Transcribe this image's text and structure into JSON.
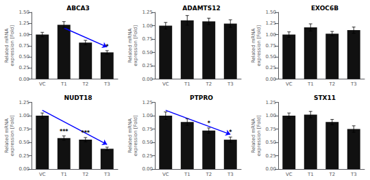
{
  "chart_data": [
    {
      "type": "bar",
      "title": "ABCA3",
      "categories": [
        "VC",
        "T1",
        "T2",
        "T3"
      ],
      "values": [
        1.0,
        1.22,
        0.82,
        0.6
      ],
      "errors": [
        0.05,
        0.07,
        0.05,
        0.04
      ],
      "color": "#111111",
      "ylabel": "Related mRNA\nexpression [Fold]",
      "ylim": [
        0.0,
        1.5
      ],
      "yticks": [
        {
          "value": 0.0,
          "label": "0.00"
        },
        0.25,
        {
          "value": 0.5,
          "label": "0.50"
        },
        0.75,
        {
          "value": 1.0,
          "label": "1.00"
        },
        1.25,
        {
          "value": 1.5,
          "label": "1.50"
        }
      ],
      "grid": false,
      "annotations": [
        {
          "type": "arrow",
          "from": [
            "T1",
            1.15
          ],
          "to": [
            "T3",
            0.72
          ],
          "color": "#0000FF"
        },
        {
          "type": "text",
          "text": "*",
          "x": "T3",
          "y": 0.6625
        }
      ]
    },
    {
      "type": "bar",
      "title": "ADAMTS12",
      "categories": [
        "VC",
        "T1",
        "T2",
        "T3"
      ],
      "values": [
        1.0,
        1.1,
        1.08,
        1.04
      ],
      "errors": [
        0.06,
        0.09,
        0.06,
        0.07
      ],
      "color": "#111111",
      "ylabel": "Related mRNA\nexpression [Fold]",
      "ylim": [
        0.0,
        1.25
      ],
      "yticks": [
        {
          "value": 0.0,
          "label": "0.00"
        },
        0.25,
        {
          "value": 0.5,
          "label": "0.50"
        },
        0.75,
        {
          "value": 1.0,
          "label": "1.00"
        },
        1.25
      ],
      "grid": false
    },
    {
      "type": "bar",
      "title": "EXOC6B",
      "categories": [
        "VC",
        "T1",
        "T2",
        "T3"
      ],
      "values": [
        1.0,
        1.16,
        1.02,
        1.1
      ],
      "errors": [
        0.06,
        0.08,
        0.05,
        0.07
      ],
      "color": "#111111",
      "ylabel": "Related mRNA\nexpression [Fold]",
      "ylim": [
        0.0,
        1.5
      ],
      "yticks": [
        {
          "value": 0.0,
          "label": "0.00"
        },
        0.25,
        {
          "value": 0.5,
          "label": "0.50"
        },
        0.75,
        {
          "value": 1.0,
          "label": "1.00"
        },
        1.25,
        {
          "value": 1.5,
          "label": "1.50"
        }
      ],
      "grid": false
    },
    {
      "type": "bar",
      "title": "NUDT18",
      "categories": [
        "VC",
        "T1",
        "T2",
        "T3"
      ],
      "values": [
        1.0,
        0.58,
        0.55,
        0.38
      ],
      "errors": [
        0.05,
        0.04,
        0.04,
        0.03
      ],
      "color": "#111111",
      "ylabel": "Related mRNA\nexpression [Fold]",
      "ylim": [
        0.0,
        1.25
      ],
      "yticks": [
        {
          "value": 0.0,
          "label": "0.00"
        },
        0.25,
        {
          "value": 0.5,
          "label": "0.50"
        },
        0.75,
        {
          "value": 1.0,
          "label": "1.00"
        },
        1.25
      ],
      "grid": false,
      "annotations": [
        {
          "type": "arrow",
          "from": [
            "VC",
            1.1
          ],
          "to": [
            "T3",
            0.46
          ],
          "color": "#0000FF"
        },
        {
          "type": "text",
          "text": "***",
          "x": "T1",
          "y": 0.65
        },
        {
          "type": "text",
          "text": "***",
          "x": "T2",
          "y": 0.62
        }
      ]
    },
    {
      "type": "bar",
      "title": "PTPRO",
      "categories": [
        "VC",
        "T1",
        "T2",
        "T3"
      ],
      "values": [
        1.0,
        0.88,
        0.72,
        0.55
      ],
      "errors": [
        0.07,
        0.06,
        0.05,
        0.05
      ],
      "color": "#111111",
      "ylabel": "Related mRNA\nexpression [Fold]",
      "ylim": [
        0.0,
        1.25
      ],
      "yticks": [
        {
          "value": 0.0,
          "label": "0.00"
        },
        0.25,
        {
          "value": 0.5,
          "label": "0.50"
        },
        0.75,
        {
          "value": 1.0,
          "label": "1.00"
        },
        1.25
      ],
      "grid": false,
      "annotations": [
        {
          "type": "arrow",
          "from": [
            "VC",
            1.1
          ],
          "to": [
            "T3",
            0.65
          ],
          "color": "#0000FF"
        },
        {
          "type": "text",
          "text": "*",
          "x": "T2",
          "y": 0.8
        },
        {
          "type": "text",
          "text": "*",
          "x": "T3",
          "y": 0.63
        }
      ]
    },
    {
      "type": "bar",
      "title": "STX11",
      "categories": [
        "VC",
        "T1",
        "T2",
        "T3"
      ],
      "values": [
        1.0,
        1.02,
        0.88,
        0.75
      ],
      "errors": [
        0.05,
        0.06,
        0.05,
        0.06
      ],
      "color": "#111111",
      "ylabel": "Related mRNA\nexpression [Fold]",
      "ylim": [
        0.0,
        1.25
      ],
      "yticks": [
        {
          "value": 0.0,
          "label": "0.00"
        },
        0.25,
        {
          "value": 0.5,
          "label": "0.50"
        },
        0.75,
        {
          "value": 1.0,
          "label": "1.00"
        },
        1.25
      ],
      "grid": false
    }
  ]
}
